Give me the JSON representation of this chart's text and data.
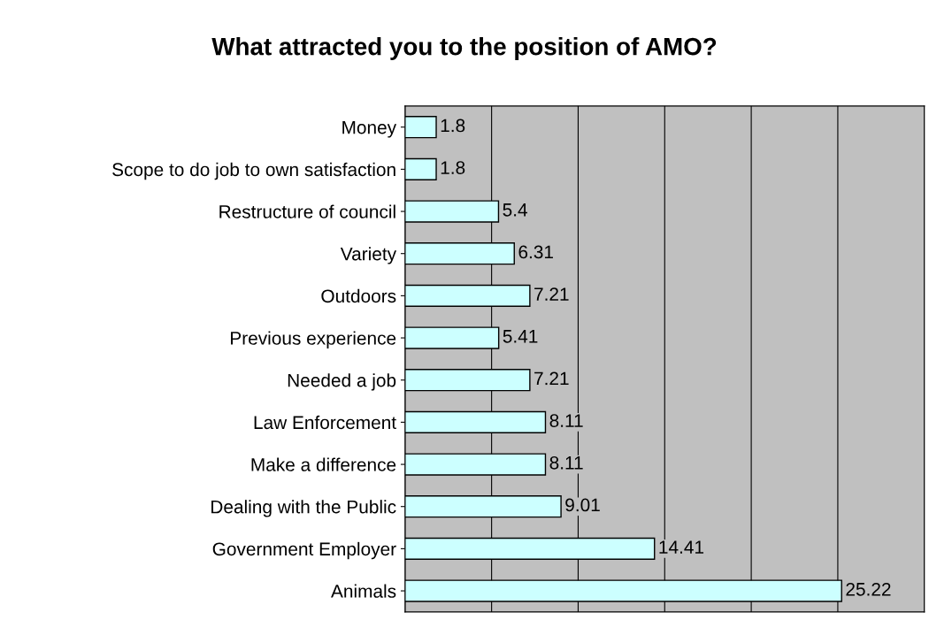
{
  "chart_data": {
    "type": "bar",
    "orientation": "horizontal",
    "title": "What attracted you to the position of AMO?",
    "categories": [
      "Money",
      "Scope to do job to own satisfaction",
      "Restructure of council",
      "Variety",
      "Outdoors",
      "Previous experience",
      "Needed a job",
      "Law Enforcement",
      "Make a difference",
      "Dealing with the Public",
      "Government Employer",
      "Animals"
    ],
    "values": [
      1.8,
      1.8,
      5.4,
      6.31,
      7.21,
      5.41,
      7.21,
      8.11,
      8.11,
      9.01,
      14.41,
      25.22
    ],
    "color": "#ccffff",
    "data_labels": true,
    "xlim": [
      0,
      30
    ],
    "xticks": [
      {
        "value": 0,
        "label": null
      },
      {
        "value": 5,
        "label": null
      },
      {
        "value": 10,
        "label": null
      },
      {
        "value": 15,
        "label": null
      },
      {
        "value": 20,
        "label": null
      },
      {
        "value": 25,
        "label": null
      },
      {
        "value": 30,
        "label": null
      }
    ],
    "grid": "x"
  }
}
